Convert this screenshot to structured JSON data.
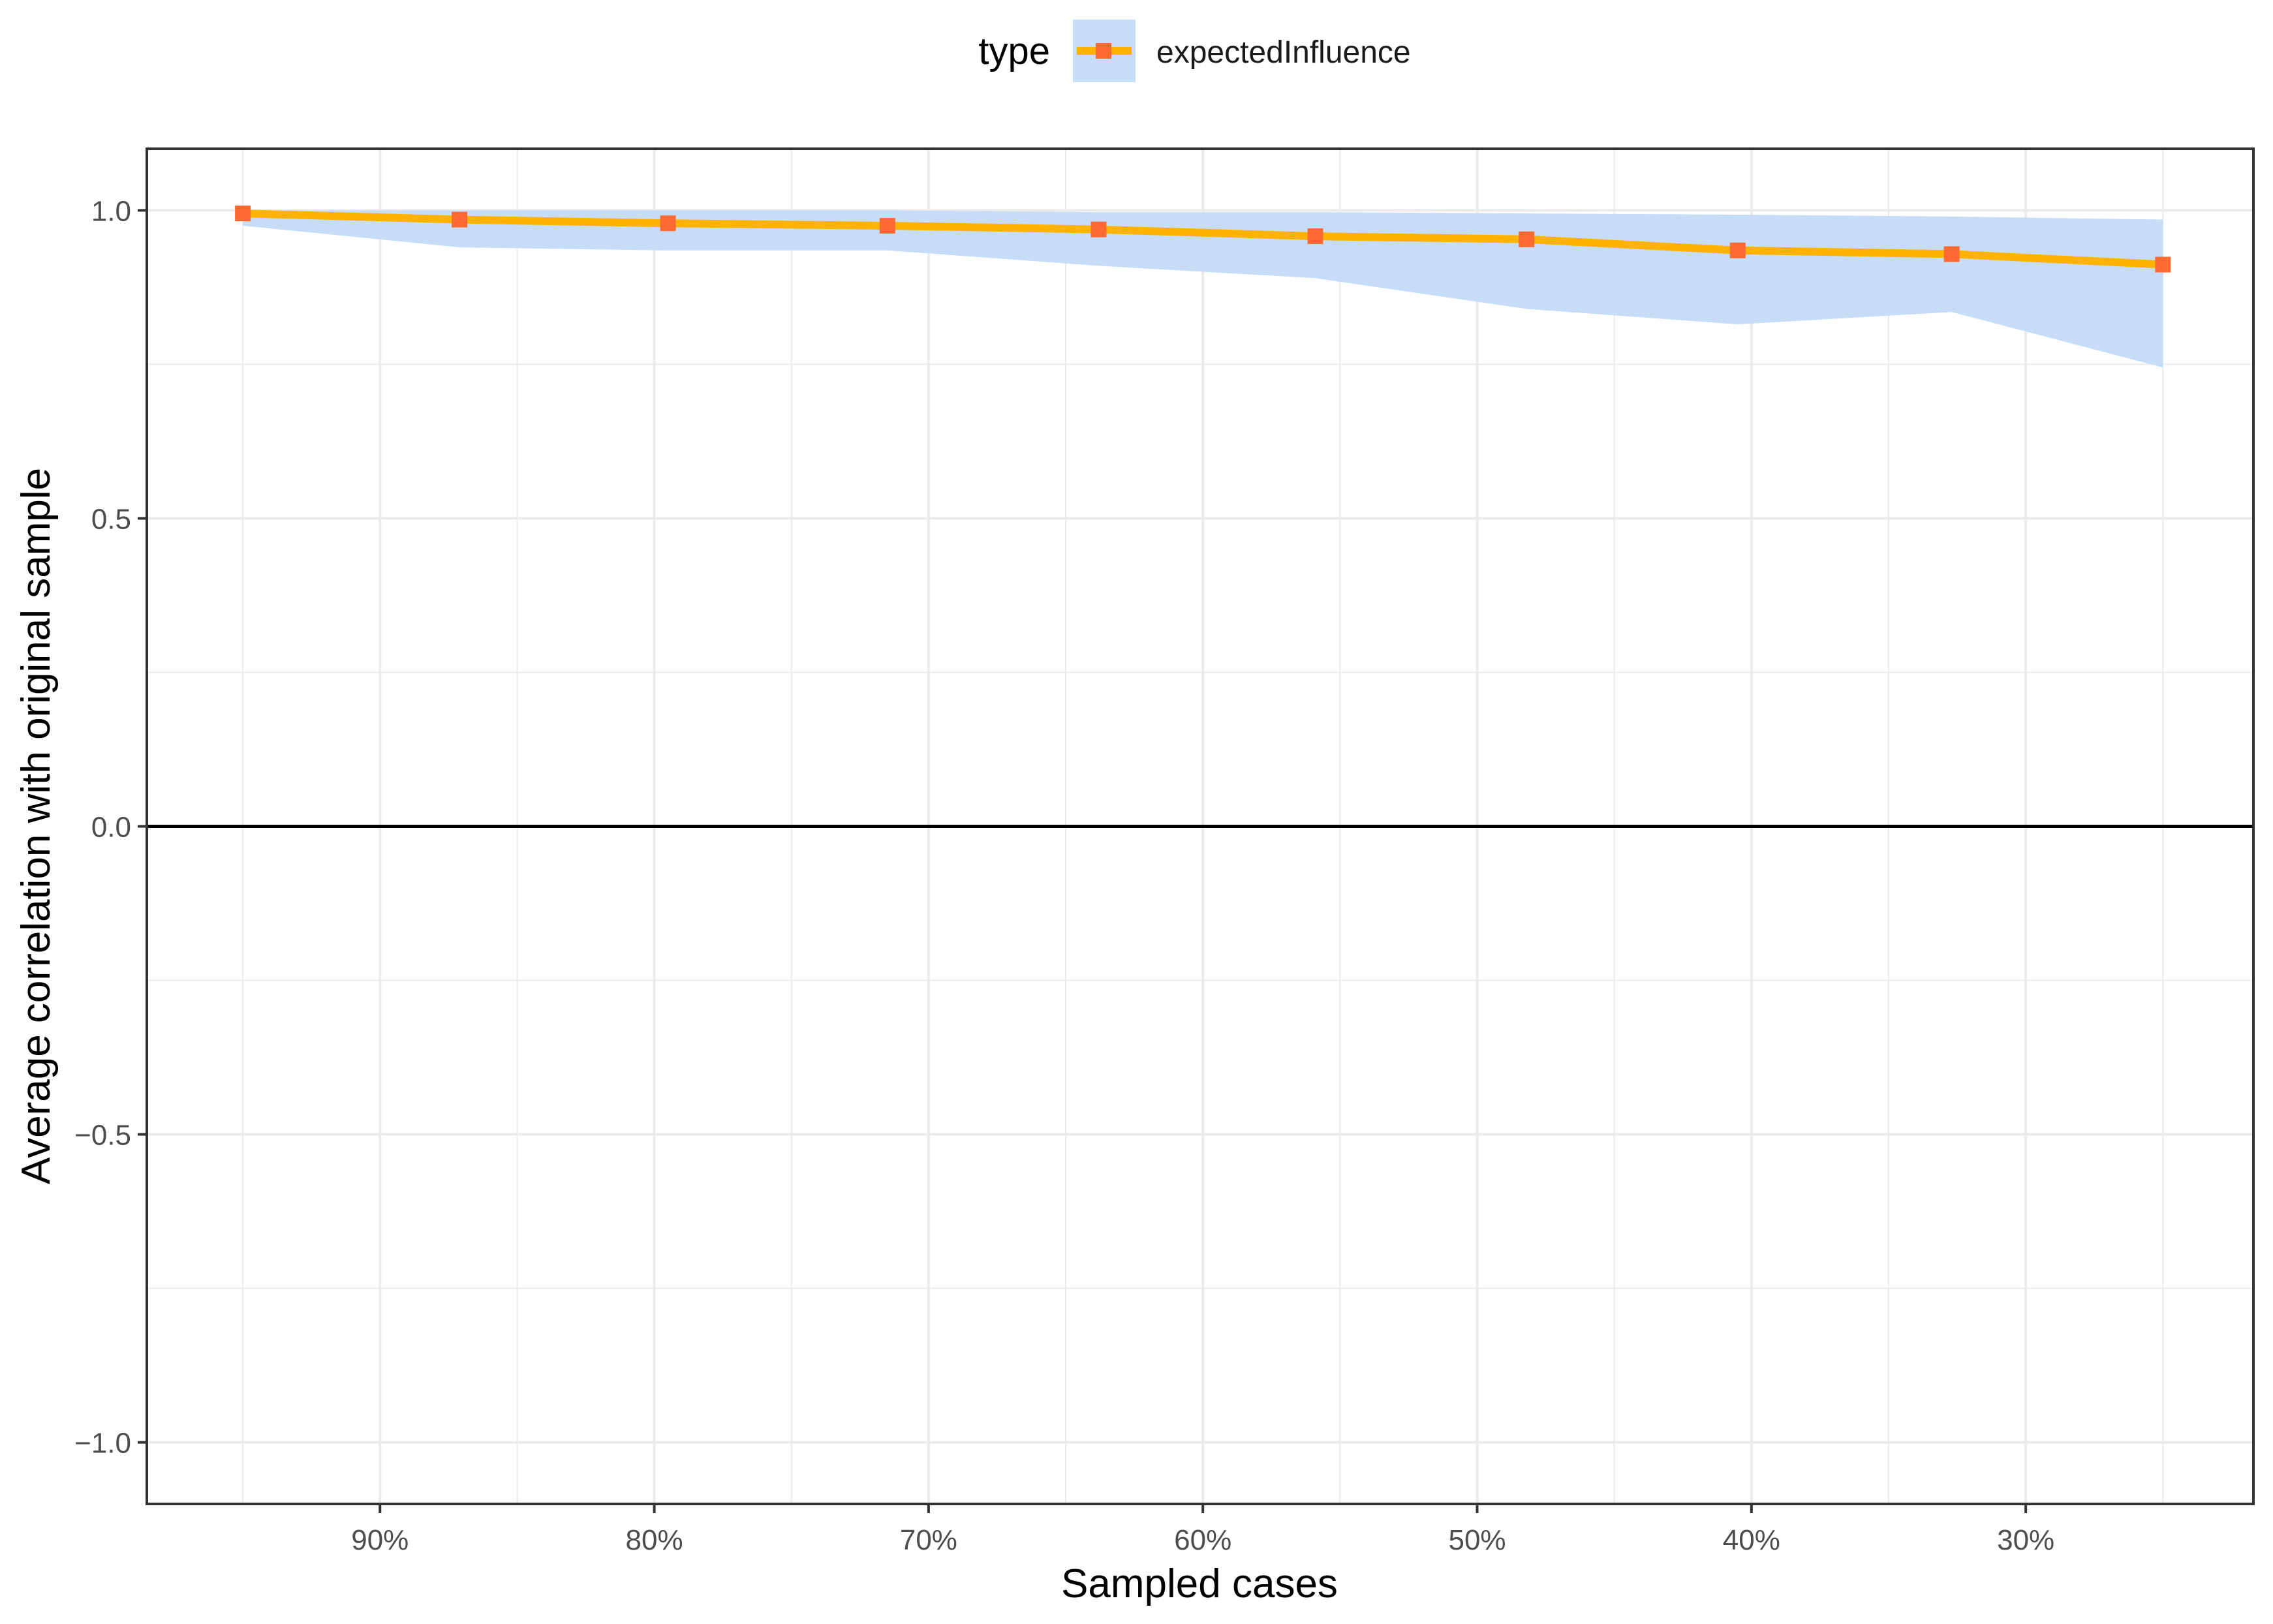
{
  "chart_data": {
    "type": "line",
    "xlabel": "Sampled cases",
    "ylabel": "Average correlation with original sample",
    "x_axis_reversed": true,
    "xlim": [
      0.985,
      0.217
    ],
    "ylim": [
      -1.1,
      1.1
    ],
    "x_ticks": [
      {
        "value": 0.9,
        "label": "90%"
      },
      {
        "value": 0.8,
        "label": "80%"
      },
      {
        "value": 0.7,
        "label": "70%"
      },
      {
        "value": 0.6,
        "label": "60%"
      },
      {
        "value": 0.5,
        "label": "50%"
      },
      {
        "value": 0.4,
        "label": "40%"
      },
      {
        "value": 0.3,
        "label": "30%"
      }
    ],
    "y_ticks": [
      {
        "value": 1.0,
        "label": "1.0"
      },
      {
        "value": 0.5,
        "label": "0.5"
      },
      {
        "value": 0.0,
        "label": "0.0"
      },
      {
        "value": -0.5,
        "label": "−0.5"
      },
      {
        "value": -1.0,
        "label": "−1.0"
      }
    ],
    "reference_line_y": 0,
    "grid": true,
    "legend": {
      "title": "type",
      "position": "top",
      "entries": [
        "expectedInfluence"
      ]
    },
    "colors": {
      "line": "#ffb300",
      "point": "#ff6a33",
      "band": "#c6dcf7",
      "grid": "#ebebeb",
      "reference": "#000000"
    },
    "series": [
      {
        "name": "expectedInfluence",
        "x": [
          0.95,
          0.871,
          0.795,
          0.715,
          0.638,
          0.559,
          0.482,
          0.405,
          0.327,
          0.25
        ],
        "y": [
          0.995,
          0.985,
          0.979,
          0.975,
          0.969,
          0.958,
          0.953,
          0.935,
          0.929,
          0.912
        ],
        "lower": [
          0.975,
          0.94,
          0.935,
          0.935,
          0.91,
          0.89,
          0.84,
          0.815,
          0.835,
          0.745
        ],
        "upper": [
          1.0,
          1.0,
          1.0,
          1.0,
          0.997,
          0.997,
          0.995,
          0.993,
          0.99,
          0.985
        ]
      }
    ]
  }
}
